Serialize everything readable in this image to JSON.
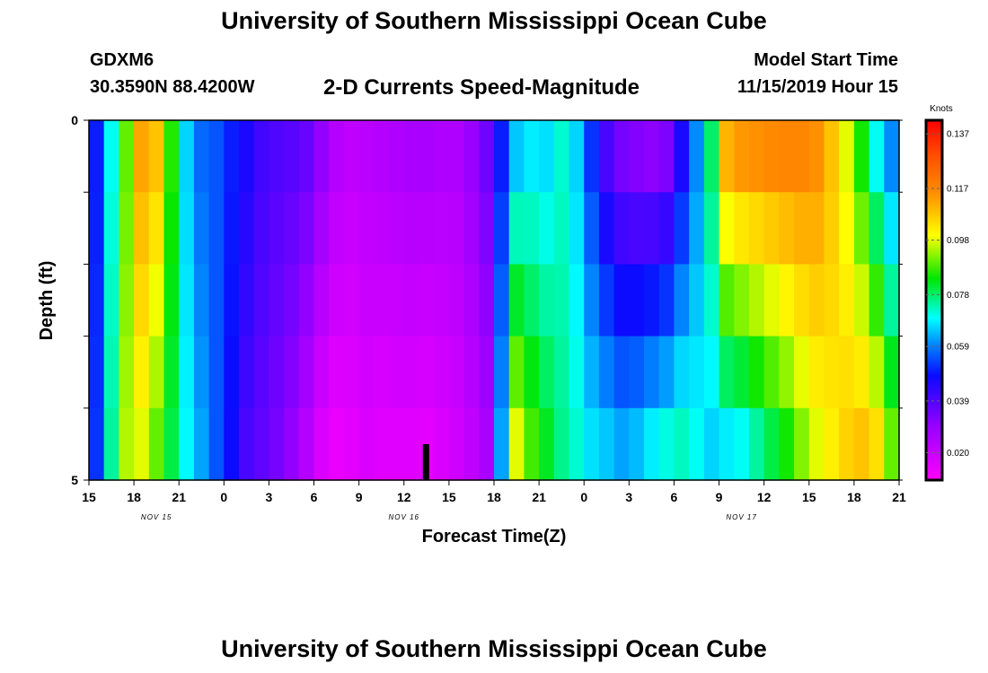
{
  "page": {
    "title": "University of Southern Mississippi Ocean Cube",
    "footer_title": "University of Southern Mississippi Ocean Cube"
  },
  "header": {
    "station_id": "GDXM6",
    "coordinates": "30.3590N 88.4200W",
    "chart_title": "2-D Currents Speed-Magnitude",
    "model_start_label": "Model Start Time",
    "model_start_value": "11/15/2019 Hour 15"
  },
  "chart_data": {
    "type": "heatmap",
    "title": "2-D Currents Speed-Magnitude",
    "xlabel": "Forecast Time(Z)",
    "ylabel": "Depth (ft)",
    "x_tick_labels": [
      "15",
      "18",
      "21",
      "0",
      "3",
      "6",
      "9",
      "12",
      "15",
      "18",
      "21",
      "0",
      "3",
      "6",
      "9",
      "12",
      "15",
      "18",
      "21"
    ],
    "x_range_hours": [
      0,
      54
    ],
    "date_labels": [
      {
        "label": "NOV 15",
        "hour": 4.5
      },
      {
        "label": "NOV 16",
        "hour": 21
      },
      {
        "label": "NOV 17",
        "hour": 43.5
      }
    ],
    "y_tick_labels": [
      "0",
      "5"
    ],
    "ylim": [
      0,
      5
    ],
    "depth_rows": 5,
    "colorbar": {
      "unit": "Knots",
      "range": [
        0.01,
        0.142
      ],
      "tick_values": [
        0.02,
        0.039,
        0.059,
        0.078,
        0.098,
        0.117,
        0.137
      ],
      "tick_labels": [
        "0.020",
        "0.039",
        "0.059",
        "0.078",
        "0.098",
        "0.117",
        "0.137"
      ]
    },
    "marker_hour": 22.5,
    "series_top": [
      0.05,
      0.07,
      0.09,
      0.112,
      0.108,
      0.086,
      0.066,
      0.057,
      0.055,
      0.05,
      0.046,
      0.041,
      0.039,
      0.038,
      0.036,
      0.03,
      0.024,
      0.022,
      0.023,
      0.024,
      0.025,
      0.026,
      0.026,
      0.025,
      0.025,
      0.029,
      0.035,
      0.05,
      0.065,
      0.068,
      0.067,
      0.072,
      0.066,
      0.052,
      0.04,
      0.034,
      0.032,
      0.031,
      0.033,
      0.046,
      0.06,
      0.078,
      0.11,
      0.114,
      0.115,
      0.116,
      0.117,
      0.117,
      0.115,
      0.108,
      0.098,
      0.085,
      0.07,
      0.06
    ],
    "series_bottom": [
      0.052,
      0.075,
      0.095,
      0.098,
      0.09,
      0.08,
      0.069,
      0.062,
      0.055,
      0.048,
      0.04,
      0.037,
      0.034,
      0.03,
      0.024,
      0.017,
      0.014,
      0.015,
      0.017,
      0.016,
      0.016,
      0.016,
      0.015,
      0.017,
      0.019,
      0.022,
      0.026,
      0.062,
      0.098,
      0.088,
      0.082,
      0.076,
      0.072,
      0.067,
      0.065,
      0.062,
      0.064,
      0.068,
      0.071,
      0.073,
      0.07,
      0.066,
      0.068,
      0.07,
      0.075,
      0.08,
      0.085,
      0.092,
      0.098,
      0.102,
      0.106,
      0.108,
      0.104,
      0.09
    ]
  }
}
